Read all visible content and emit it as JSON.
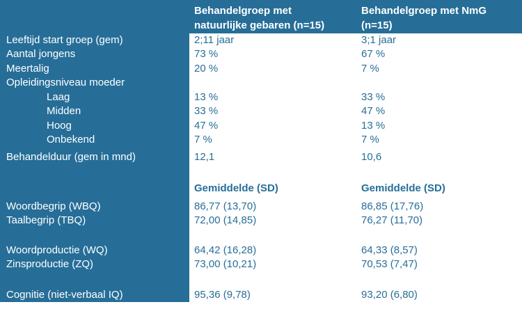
{
  "header": {
    "group1": "Behandelgroep met natuurlijke gebaren (n=15)",
    "group2": "Behandelgroep met NmG (n=15)"
  },
  "rows": [
    {
      "label": "Leeftijd start groep (gem)",
      "v1": "2;11 jaar",
      "v2": "3;1 jaar"
    },
    {
      "label": "Aantal jongens",
      "v1": "73 %",
      "v2": "67 %"
    },
    {
      "label": "Meertalig",
      "v1": "20 %",
      "v2": "7 %"
    },
    {
      "label": "Opleidingsniveau moeder",
      "v1": "",
      "v2": ""
    },
    {
      "label": "Laag",
      "v1": "13 %",
      "v2": "33 %"
    },
    {
      "label": "Midden",
      "v1": "33 %",
      "v2": "47 %"
    },
    {
      "label": "Hoog",
      "v1": "47 %",
      "v2": "13 %"
    },
    {
      "label": "Onbekend",
      "v1": "7 %",
      "v2": "7 %"
    },
    {
      "label": "Behandelduur (gem in mnd)",
      "v1": "12,1",
      "v2": "10,6"
    },
    {
      "label": "",
      "v1": "Gemiddelde (SD)",
      "v2": "Gemiddelde (SD)"
    },
    {
      "label": "Woordbegrip (WBQ)",
      "v1": "86,77 (13,70)",
      "v2": "86,85 (17,76)"
    },
    {
      "label": "Taalbegrip (TBQ)",
      "v1": "72,00 (14,85)",
      "v2": "76,27 (11,70)"
    },
    {
      "label": "Woordproductie (WQ)",
      "v1": "64,42 (16,28)",
      "v2": "64,33 (8,57)"
    },
    {
      "label": "Zinsproductie (ZQ)",
      "v1": "73,00 (10,21)",
      "v2": "70,53 (7,47)"
    },
    {
      "label": "Cognitie (niet-verbaal IQ)",
      "v1": "95,36 (9,78)",
      "v2": "93,20 (6,80)"
    }
  ]
}
